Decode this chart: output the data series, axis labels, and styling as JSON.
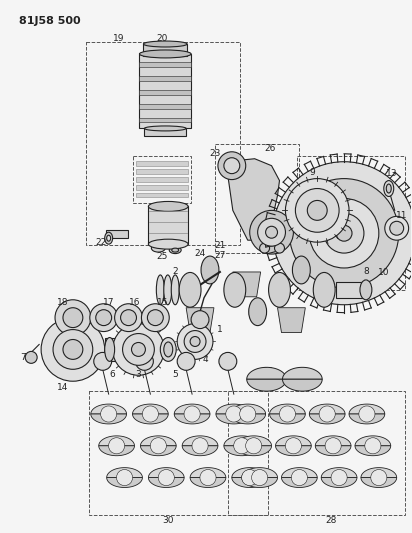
{
  "title": "81J58 500",
  "bg_color": "#f5f5f5",
  "line_color": "#222222",
  "figsize": [
    4.12,
    5.33
  ],
  "dpi": 100
}
